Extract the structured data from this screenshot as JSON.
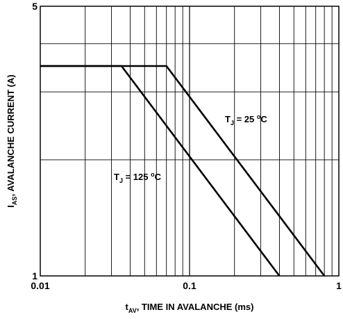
{
  "chart_data": {
    "type": "line",
    "title": "",
    "xscale": "log",
    "yscale": "log",
    "xlim": [
      0.01,
      1
    ],
    "ylim": [
      1,
      5
    ],
    "grid": true,
    "x_ticks": [
      "0.01",
      "0.1",
      "1"
    ],
    "y_ticks": [
      "1",
      "5"
    ],
    "xlabel": {
      "main": "t",
      "sub": "AV",
      "rest": ", TIME IN AVALANCHE (ms)"
    },
    "ylabel": {
      "main": "I",
      "sub": "AS",
      "rest": ", AVALANCHE CURRENT (A)"
    },
    "series": [
      {
        "label": {
          "main": "T",
          "sub": "J",
          "rest": " = 25 ",
          "sup": "o",
          "unit": "C"
        },
        "points": [
          [
            0.01,
            3.5
          ],
          [
            0.07,
            3.5
          ],
          [
            0.8,
            1.0
          ]
        ]
      },
      {
        "label": {
          "main": "T",
          "sub": "J",
          "rest": " = 125 ",
          "sup": "o",
          "unit": "C"
        },
        "points": [
          [
            0.01,
            3.5
          ],
          [
            0.035,
            3.5
          ],
          [
            0.4,
            1.0
          ]
        ]
      }
    ]
  }
}
